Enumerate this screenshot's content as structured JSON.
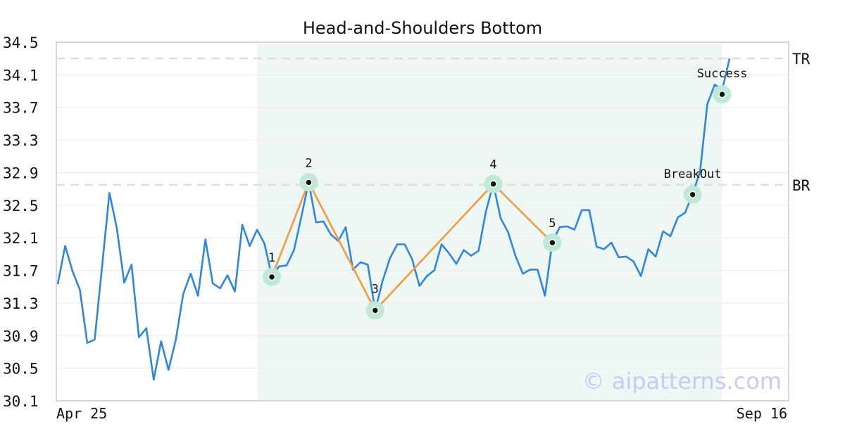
{
  "chart_data": {
    "type": "line",
    "title": "Head-and-Shoulders Bottom",
    "watermark": "© aipatterns.com",
    "xlabel": "",
    "ylabel": "",
    "ylim": [
      30.1,
      34.5
    ],
    "yticks": [
      "30.1",
      "30.5",
      "30.9",
      "31.3",
      "31.7",
      "32.1",
      "32.5",
      "32.9",
      "33.3",
      "33.7",
      "34.1",
      "34.5"
    ],
    "xtick_labels": [
      "Apr 25",
      "Sep 16"
    ],
    "grid": true,
    "colors": {
      "price": "#2f86e0",
      "pattern": "#f59a3c",
      "marker_ring": "#bfe8d6",
      "highlight": "#eef7f3",
      "level": "#dddddd"
    },
    "price": [
      31.53,
      32.0,
      31.69,
      31.46,
      30.81,
      30.85,
      31.74,
      32.65,
      32.22,
      31.55,
      31.77,
      30.88,
      30.99,
      30.36,
      30.83,
      30.48,
      30.85,
      31.41,
      31.66,
      31.39,
      32.08,
      31.54,
      31.48,
      31.64,
      31.44,
      32.26,
      32.0,
      32.2,
      32.03,
      31.63,
      31.75,
      31.76,
      31.95,
      32.36,
      32.78,
      32.29,
      32.3,
      32.14,
      32.06,
      32.23,
      31.71,
      31.8,
      31.77,
      31.21,
      31.57,
      31.85,
      32.02,
      32.02,
      31.84,
      31.51,
      31.63,
      31.7,
      32.02,
      31.91,
      31.78,
      31.95,
      31.88,
      31.94,
      32.42,
      32.76,
      32.34,
      32.17,
      31.88,
      31.66,
      31.71,
      31.71,
      31.39,
      32.05,
      32.23,
      32.24,
      32.2,
      32.44,
      32.44,
      31.99,
      31.96,
      32.04,
      31.86,
      31.87,
      31.81,
      31.63,
      31.96,
      31.87,
      32.18,
      32.12,
      32.35,
      32.41,
      32.64,
      32.91,
      33.74,
      33.98,
      33.91,
      34.3
    ],
    "highlight_range": [
      27,
      90
    ],
    "pattern_points": [
      {
        "label": "1",
        "index": 29,
        "value": 31.62
      },
      {
        "label": "2",
        "index": 34,
        "value": 32.78
      },
      {
        "label": "3",
        "index": 43,
        "value": 31.21
      },
      {
        "label": "4",
        "index": 59,
        "value": 32.76
      },
      {
        "label": "5",
        "index": 67,
        "value": 32.04
      }
    ],
    "event_points": [
      {
        "label": "BreakOut",
        "index": 86,
        "value": 32.63
      },
      {
        "label": "Success",
        "index": 90,
        "value": 33.86
      }
    ],
    "levels": [
      {
        "label": "TR",
        "value": 34.3
      },
      {
        "label": "BR",
        "value": 32.75
      }
    ]
  }
}
